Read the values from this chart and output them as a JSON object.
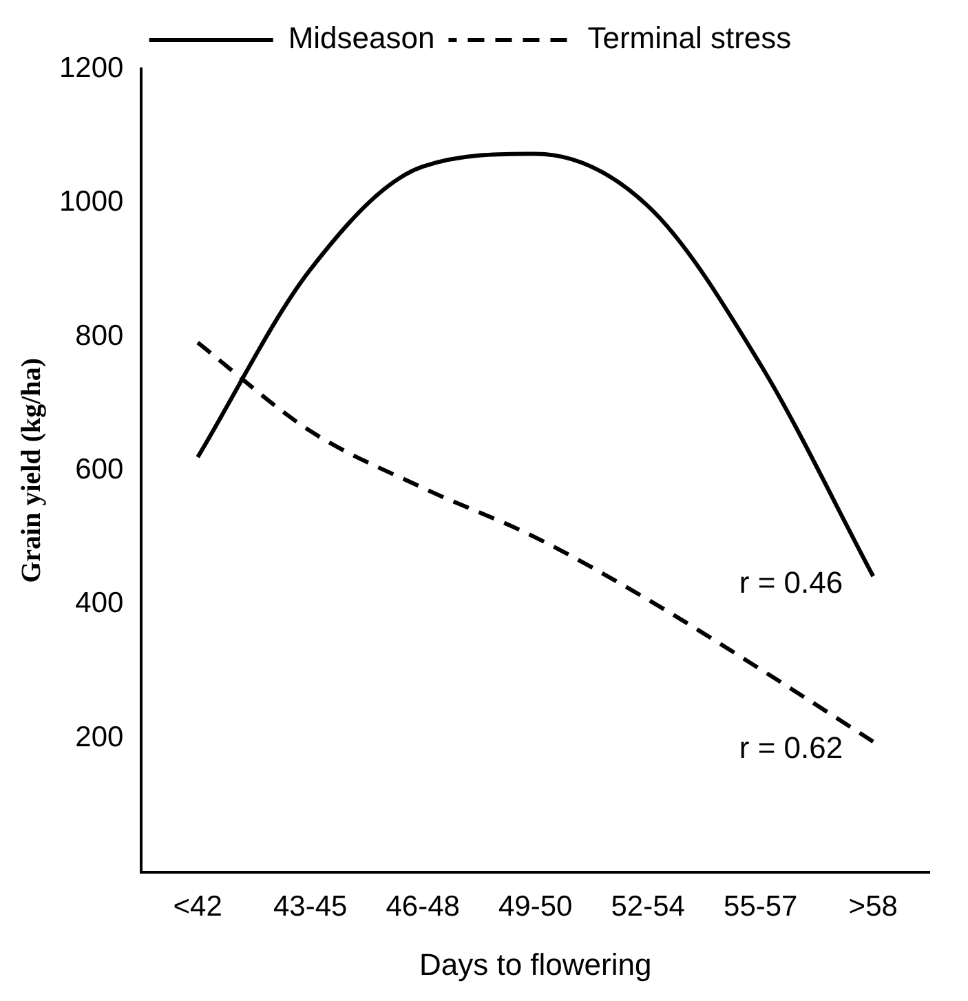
{
  "chart_data": {
    "type": "line",
    "xlabel": "Days to flowering",
    "ylabel": "Grain yield (kg/ha)",
    "categories": [
      "<42",
      "43-45",
      "46-48",
      "49-50",
      "52-54",
      "55-57",
      ">58"
    ],
    "series": [
      {
        "name": "Midseason",
        "color": "#000000",
        "line_style": "solid",
        "values": [
          620,
          900,
          1054,
          1073,
          995,
          758,
          442
        ]
      },
      {
        "name": "Terminal stress",
        "color": "#000000",
        "line_style": "dashed",
        "values": [
          791,
          659,
          574,
          500,
          407,
          303,
          195
        ]
      }
    ],
    "ylim": [
      0,
      1200
    ],
    "yticks": [
      200,
      400,
      600,
      800,
      1000,
      1200
    ],
    "grid": false,
    "legend": "top",
    "marker": "none",
    "annotations": [
      {
        "text": "r = 0.46",
        "x": ">58",
        "y": 442
      },
      {
        "text": "r = 0.62",
        "x": ">58",
        "y": 195
      }
    ]
  }
}
